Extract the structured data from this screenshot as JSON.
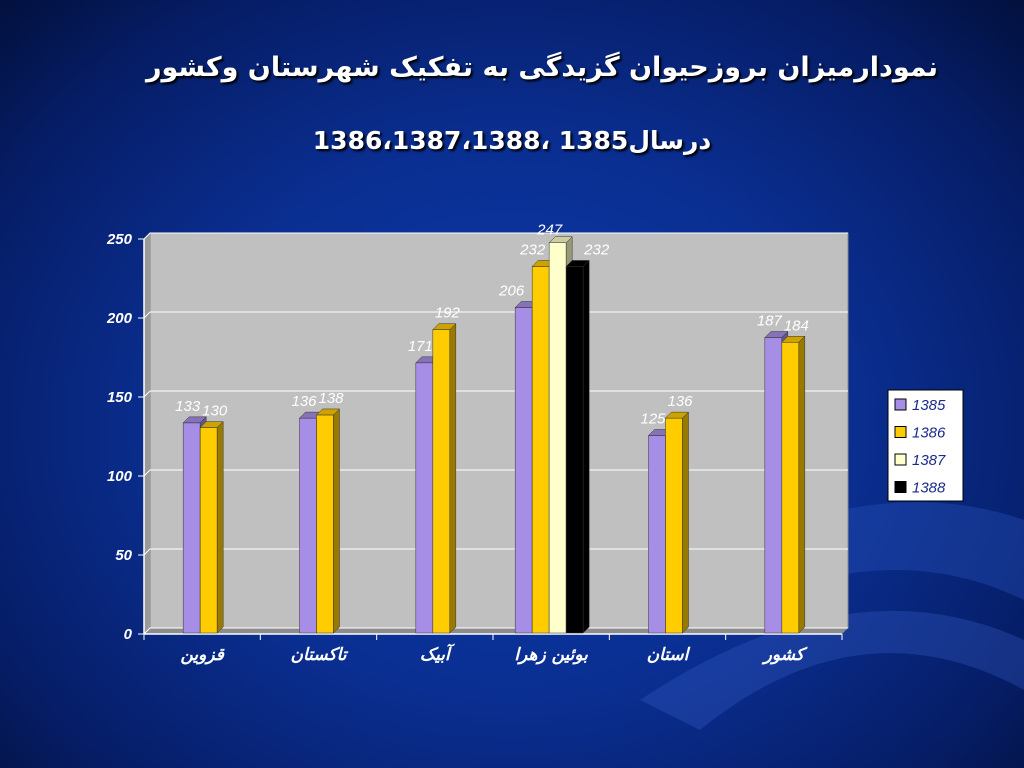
{
  "slide": {
    "title_line1": "نمودارمیزان بروزحیوان گزیدگی به تفکیک شهرستان وکشور",
    "title_line2": "درسال1385 ،1386،1387،1388"
  },
  "chart_data": {
    "type": "bar",
    "categories": [
      "قزوین",
      "تاکستان",
      "آبیک",
      "بوئین زهرا",
      "استان",
      "کشور"
    ],
    "series": [
      {
        "name": "1385",
        "color": "#a68ee6",
        "values": [
          133,
          136,
          171,
          206,
          125,
          187
        ]
      },
      {
        "name": "1386",
        "color": "#ffcc00",
        "values": [
          130,
          138,
          192,
          232,
          136,
          184
        ]
      },
      {
        "name": "1387",
        "color": "#ffffcc",
        "values": [
          null,
          null,
          null,
          247,
          null,
          null
        ]
      },
      {
        "name": "1388",
        "color": "#000000",
        "values": [
          null,
          null,
          null,
          232,
          null,
          null
        ]
      }
    ],
    "ylim": [
      0,
      250
    ],
    "yticks": [
      0,
      50,
      100,
      150,
      200,
      250
    ],
    "grid": true,
    "legend": "right",
    "plot_background": "#c0c0c0"
  }
}
